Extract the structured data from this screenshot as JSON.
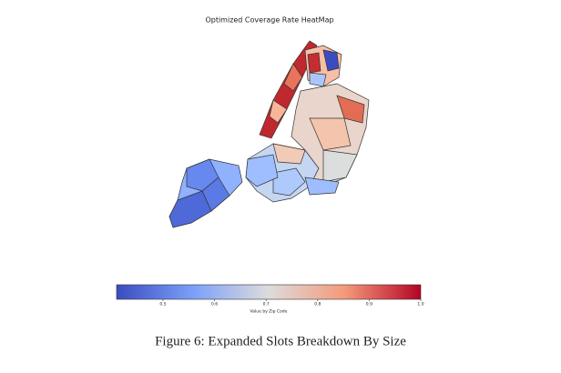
{
  "chart_data": {
    "type": "choropleth",
    "title": "Optimized Coverage Rate HeatMap",
    "colorbar_label": "Value by Zip Code",
    "clim": [
      0.41,
      1.0
    ],
    "cticks": [
      0.5,
      0.6,
      0.7,
      0.8,
      0.9,
      {
        "value": 1.0,
        "label": "1.0"
      }
    ]
  },
  "caption": "Figure 6: Expanded Slots Breakdown By Size"
}
